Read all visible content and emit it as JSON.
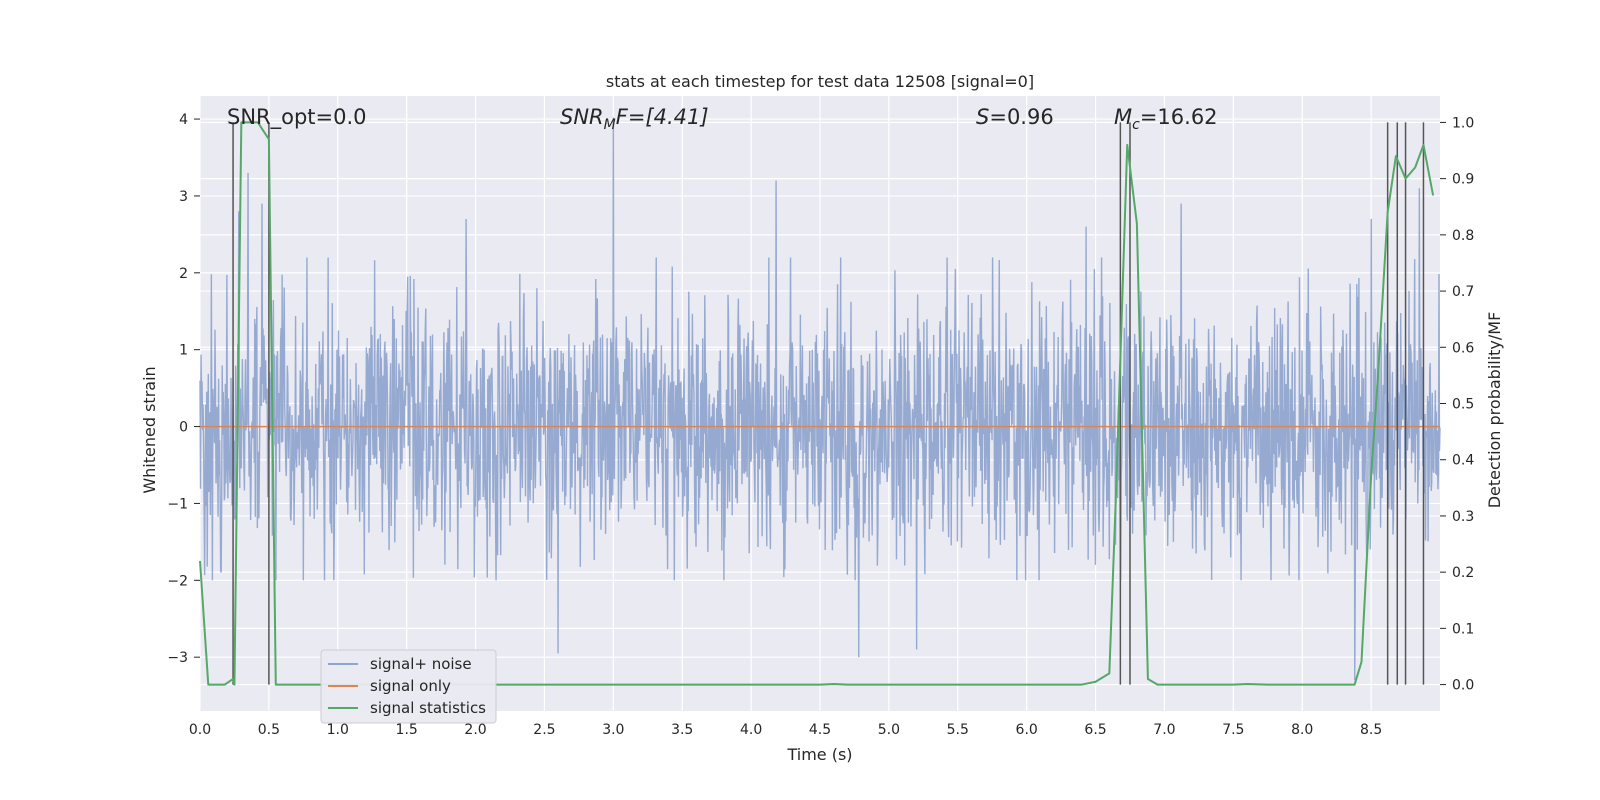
{
  "chart_data": {
    "type": "line",
    "title": "stats at each timestep for test data 12508 [signal=0]",
    "xlabel": "Time (s)",
    "ylabel_left": "Whitened strain",
    "ylabel_right": "Detection probability/MF",
    "xlim": [
      0,
      9
    ],
    "ylim_left": [
      -3.7,
      4.3
    ],
    "ylim_right": [
      -0.047,
      1.047
    ],
    "x_ticks": [
      0.0,
      0.5,
      1.0,
      1.5,
      2.0,
      2.5,
      3.0,
      3.5,
      4.0,
      4.5,
      5.0,
      5.5,
      6.0,
      6.5,
      7.0,
      7.5,
      8.0,
      8.5
    ],
    "x_tick_labels": [
      "0.0",
      "0.5",
      "1.0",
      "1.5",
      "2.0",
      "2.5",
      "3.0",
      "3.5",
      "4.0",
      "4.5",
      "5.0",
      "5.5",
      "6.0",
      "6.5",
      "7.0",
      "7.5",
      "8.0",
      "8.5"
    ],
    "y_left_ticks": [
      -3,
      -2,
      -1,
      0,
      1,
      2,
      3,
      4
    ],
    "y_left_tick_labels": [
      "−3",
      "−2",
      "−1",
      "0",
      "1",
      "2",
      "3",
      "4"
    ],
    "y_right_ticks": [
      0.0,
      0.1,
      0.2,
      0.3,
      0.4,
      0.5,
      0.6,
      0.7,
      0.8,
      0.9,
      1.0
    ],
    "y_right_tick_labels": [
      "0.0",
      "0.1",
      "0.2",
      "0.3",
      "0.4",
      "0.5",
      "0.6",
      "0.7",
      "0.8",
      "0.9",
      "1.0"
    ],
    "grid": true,
    "legend_position": "lower-left",
    "annotations": {
      "snr_opt": "SNR_opt=0.0",
      "snr_mf_base": "SNR",
      "snr_mf_sub": "M",
      "snr_mf_rest": "F=[4.41]",
      "s_label": "S",
      "s_value": "=0.96",
      "mc_base": "M",
      "mc_sub": "c",
      "mc_value": "=16.62"
    },
    "series": [
      {
        "name": "signal+ noise",
        "color": "#91a6cf",
        "kind": "noise",
        "amplitude_envelope": {
          "typical_max": 2.2,
          "typical_min": -2.0,
          "peaks": [
            [
              0.28,
              2.8
            ],
            [
              0.35,
              3.3
            ],
            [
              0.45,
              2.9
            ],
            [
              1.93,
              2.7
            ],
            [
              3.0,
              4.02
            ],
            [
              4.18,
              3.2
            ],
            [
              6.43,
              2.6
            ],
            [
              7.12,
              2.9
            ],
            [
              8.5,
              2.7
            ],
            [
              8.85,
              3.1
            ],
            [
              2.6,
              -2.95
            ],
            [
              4.78,
              -3.0
            ],
            [
              5.2,
              -2.9
            ],
            [
              8.38,
              -3.3
            ]
          ]
        }
      },
      {
        "name": "signal only",
        "color": "#dd8452",
        "kind": "line",
        "x": [
          0,
          9
        ],
        "y": [
          0,
          0
        ]
      },
      {
        "name": "signal statistics",
        "color": "#55a868",
        "kind": "line",
        "axis": "right",
        "x": [
          0.0,
          0.06,
          0.12,
          0.18,
          0.24,
          0.25,
          0.3,
          0.42,
          0.5,
          0.55,
          0.6,
          1.0,
          2.0,
          3.0,
          4.0,
          4.5,
          4.6,
          4.7,
          5.0,
          5.5,
          6.0,
          6.4,
          6.5,
          6.6,
          6.65,
          6.73,
          6.8,
          6.88,
          6.95,
          7.0,
          7.5,
          7.6,
          7.75,
          8.0,
          8.38,
          8.43,
          8.5,
          8.55,
          8.62,
          8.68,
          8.75,
          8.82,
          8.88,
          8.95
        ],
        "y": [
          0.22,
          0.0,
          0.0,
          0.0,
          0.01,
          0.0,
          1.0,
          1.0,
          0.97,
          0.0,
          0.0,
          0.0,
          0.0,
          0.0,
          0.0,
          0.0,
          0.001,
          0.0,
          0.0,
          0.0,
          0.0,
          0.0,
          0.005,
          0.02,
          0.35,
          0.96,
          0.82,
          0.01,
          0.0,
          0.0,
          0.0,
          0.001,
          0.0,
          0.0,
          0.0,
          0.04,
          0.37,
          0.55,
          0.84,
          0.94,
          0.9,
          0.92,
          0.96,
          0.87
        ]
      }
    ],
    "vertical_markers": [
      0.24,
      0.5,
      6.68,
      6.75,
      8.62,
      8.69,
      8.75,
      8.88
    ],
    "colors": {
      "plot_background": "#eaeaf2",
      "grid": "#ffffff",
      "marker_lines": "#555555"
    }
  }
}
